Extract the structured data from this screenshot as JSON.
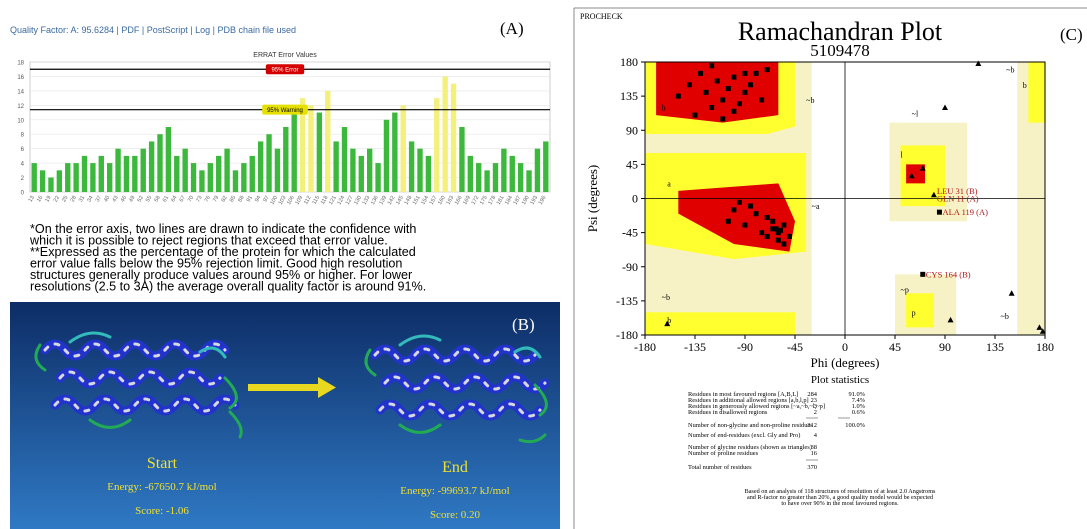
{
  "panel_a": {
    "label": "(A)",
    "header": "Quality Factor: A: 95.6284 | PDF | PostScript | Log | PDB chain file used",
    "notes": [
      "*On the error axis, two lines are drawn to indicate the confidence with",
      "which it is possible to reject regions that exceed that error value.",
      "**Expressed as the percentage of the protein for which the calculated",
      "error value falls below the 95% rejection limit. Good high resolution",
      "structures generally produce values around 95% or higher. For lower",
      "resolutions (2.5 to 3A) the average overall quality factor is around 91%."
    ]
  },
  "panel_b": {
    "label": "(B)",
    "start": {
      "title": "Start",
      "energy": "Energy: -67650.7 kJ/mol",
      "score": "Score: -1.06"
    },
    "end": {
      "title": "End",
      "energy": "Energy: -99693.7 kJ/mol",
      "score": "Score: 0.20"
    }
  },
  "panel_c": {
    "header": "PROCHECK",
    "label": "(C)",
    "statistics": {
      "title": "Plot statistics",
      "rows": [
        [
          "Residues in most favoured regions [A,B,L]",
          284,
          "91.0%"
        ],
        [
          "Residues in additional allowed regions [a,b,l,p]",
          23,
          "7.4%"
        ],
        [
          "Residues in generously allowed regions [~a,~b,~l,~p]",
          3,
          "1.0%"
        ],
        [
          "Residues in disallowed regions",
          2,
          "0.6%"
        ],
        [
          "Number of non-glycine and non-proline residues",
          312,
          "100.0%"
        ],
        [
          "Number of end-residues (excl. Gly and Pro)",
          4
        ],
        [
          "Number of glycine residues (shown as triangles)",
          38
        ],
        [
          "Number of proline residues",
          16
        ],
        [
          "Total number of residues",
          370
        ]
      ],
      "footnote": [
        "Based on an analysis of 118 structures of resolution of at least 2.0 Angstroms",
        "and R-factor no greater than 20%, a good quality model would be expected",
        "to have over 90% in the most favoured regions."
      ]
    }
  },
  "chart_data": [
    {
      "type": "bar",
      "title": "ERRAT Error Values",
      "categories": [
        13,
        16,
        19,
        22,
        25,
        28,
        31,
        34,
        37,
        40,
        43,
        46,
        49,
        52,
        55,
        58,
        61,
        64,
        67,
        70,
        73,
        76,
        79,
        82,
        85,
        88,
        91,
        94,
        97,
        100,
        103,
        106,
        109,
        112,
        115,
        118,
        121,
        124,
        127,
        130,
        133,
        136,
        139,
        142,
        145,
        148,
        151,
        154,
        157,
        160,
        163,
        166,
        169,
        172,
        175,
        178,
        181,
        184,
        187,
        190,
        193,
        196
      ],
      "values": [
        4,
        3,
        2,
        3,
        4,
        4,
        5,
        4,
        5,
        4,
        6,
        5,
        5,
        6,
        7,
        8,
        9,
        5,
        6,
        4,
        3,
        4,
        5,
        6,
        3,
        4,
        5,
        7,
        8,
        6,
        9,
        11,
        13,
        12,
        11,
        14,
        7,
        9,
        6,
        5,
        6,
        4,
        10,
        11,
        12,
        7,
        6,
        5,
        13,
        16,
        15,
        9,
        5,
        4,
        3,
        4,
        6,
        5,
        4,
        3,
        6,
        7
      ],
      "color": "#3cb83c",
      "highlight_color": "#f4f07c",
      "ylim": [
        0,
        18
      ],
      "yticks": [
        0,
        2,
        4,
        6,
        8,
        10,
        12,
        14,
        16,
        18
      ],
      "grid": true,
      "reference_lines": [
        {
          "value": 17,
          "label": "95% Error",
          "color": "#d40000"
        },
        {
          "value": 11.4,
          "label": "95% Warning",
          "color": "#e6e000"
        }
      ]
    },
    {
      "type": "scatter",
      "title": "Ramachandran Plot",
      "subtitle": "5109478",
      "x_label": "Phi (degrees)",
      "y_label": "Psi (degrees)",
      "xlim": [
        -180,
        180
      ],
      "ylim": [
        -180,
        180
      ],
      "xticks": [
        -180,
        -135,
        -90,
        -45,
        0,
        45,
        90,
        135,
        180
      ],
      "yticks": [
        -180,
        -135,
        -90,
        -45,
        0,
        45,
        90,
        135,
        180
      ],
      "series": [
        {
          "marker": "square",
          "color": "#000000",
          "x": [
            -140,
            -130,
            -125,
            -120,
            -115,
            -110,
            -105,
            -100,
            -95,
            -90,
            -85,
            -80,
            -75,
            -70,
            -150,
            -135,
            -120,
            -110,
            -100,
            -90,
            -65,
            -60,
            -55,
            -50,
            -65,
            -70,
            -75,
            -80,
            -85,
            -90,
            -95,
            -100,
            -60,
            -55,
            -70,
            -62,
            -58,
            -105,
            85,
            70
          ],
          "values": [
            150,
            165,
            140,
            120,
            155,
            130,
            145,
            160,
            125,
            140,
            150,
            165,
            130,
            170,
            135,
            110,
            175,
            105,
            115,
            165,
            -40,
            -45,
            -35,
            -50,
            -30,
            -25,
            -45,
            -20,
            -10,
            -35,
            -5,
            -15,
            -55,
            -60,
            -50,
            -40,
            -42,
            -30,
            -18,
            -100
          ]
        },
        {
          "marker": "triangle",
          "color": "#000000",
          "x": [
            120,
            150,
            175,
            178,
            80,
            90,
            60,
            95,
            -160,
            70
          ],
          "values": [
            178,
            -125,
            -170,
            -175,
            5,
            120,
            30,
            -160,
            -165,
            40
          ]
        }
      ],
      "annotations": [
        {
          "text": "LEU 31 (B)",
          "x": 80,
          "y": 10
        },
        {
          "text": "GLN 11 (A)",
          "x": 80,
          "y": 0
        },
        {
          "text": "ALA 119 (A)",
          "x": 85,
          "y": -18
        },
        {
          "text": "CYS 164 (B)",
          "x": 70,
          "y": -100
        }
      ],
      "region_labels": [
        {
          "text": "b",
          "x": -165,
          "y": 120
        },
        {
          "text": "a",
          "x": -160,
          "y": 20
        },
        {
          "text": "~b",
          "x": -35,
          "y": 130
        },
        {
          "text": "~a",
          "x": -30,
          "y": -10
        },
        {
          "text": "~l",
          "x": 60,
          "y": 112
        },
        {
          "text": "l",
          "x": 50,
          "y": 58
        },
        {
          "text": "~p",
          "x": 50,
          "y": -120
        },
        {
          "text": "p",
          "x": 60,
          "y": -150
        },
        {
          "text": "~b",
          "x": -165,
          "y": -130
        },
        {
          "text": "b",
          "x": -160,
          "y": -160
        },
        {
          "text": "~b",
          "x": 145,
          "y": 170
        },
        {
          "text": "b",
          "x": 160,
          "y": 150
        },
        {
          "text": "~b",
          "x": 140,
          "y": -155
        }
      ]
    }
  ]
}
